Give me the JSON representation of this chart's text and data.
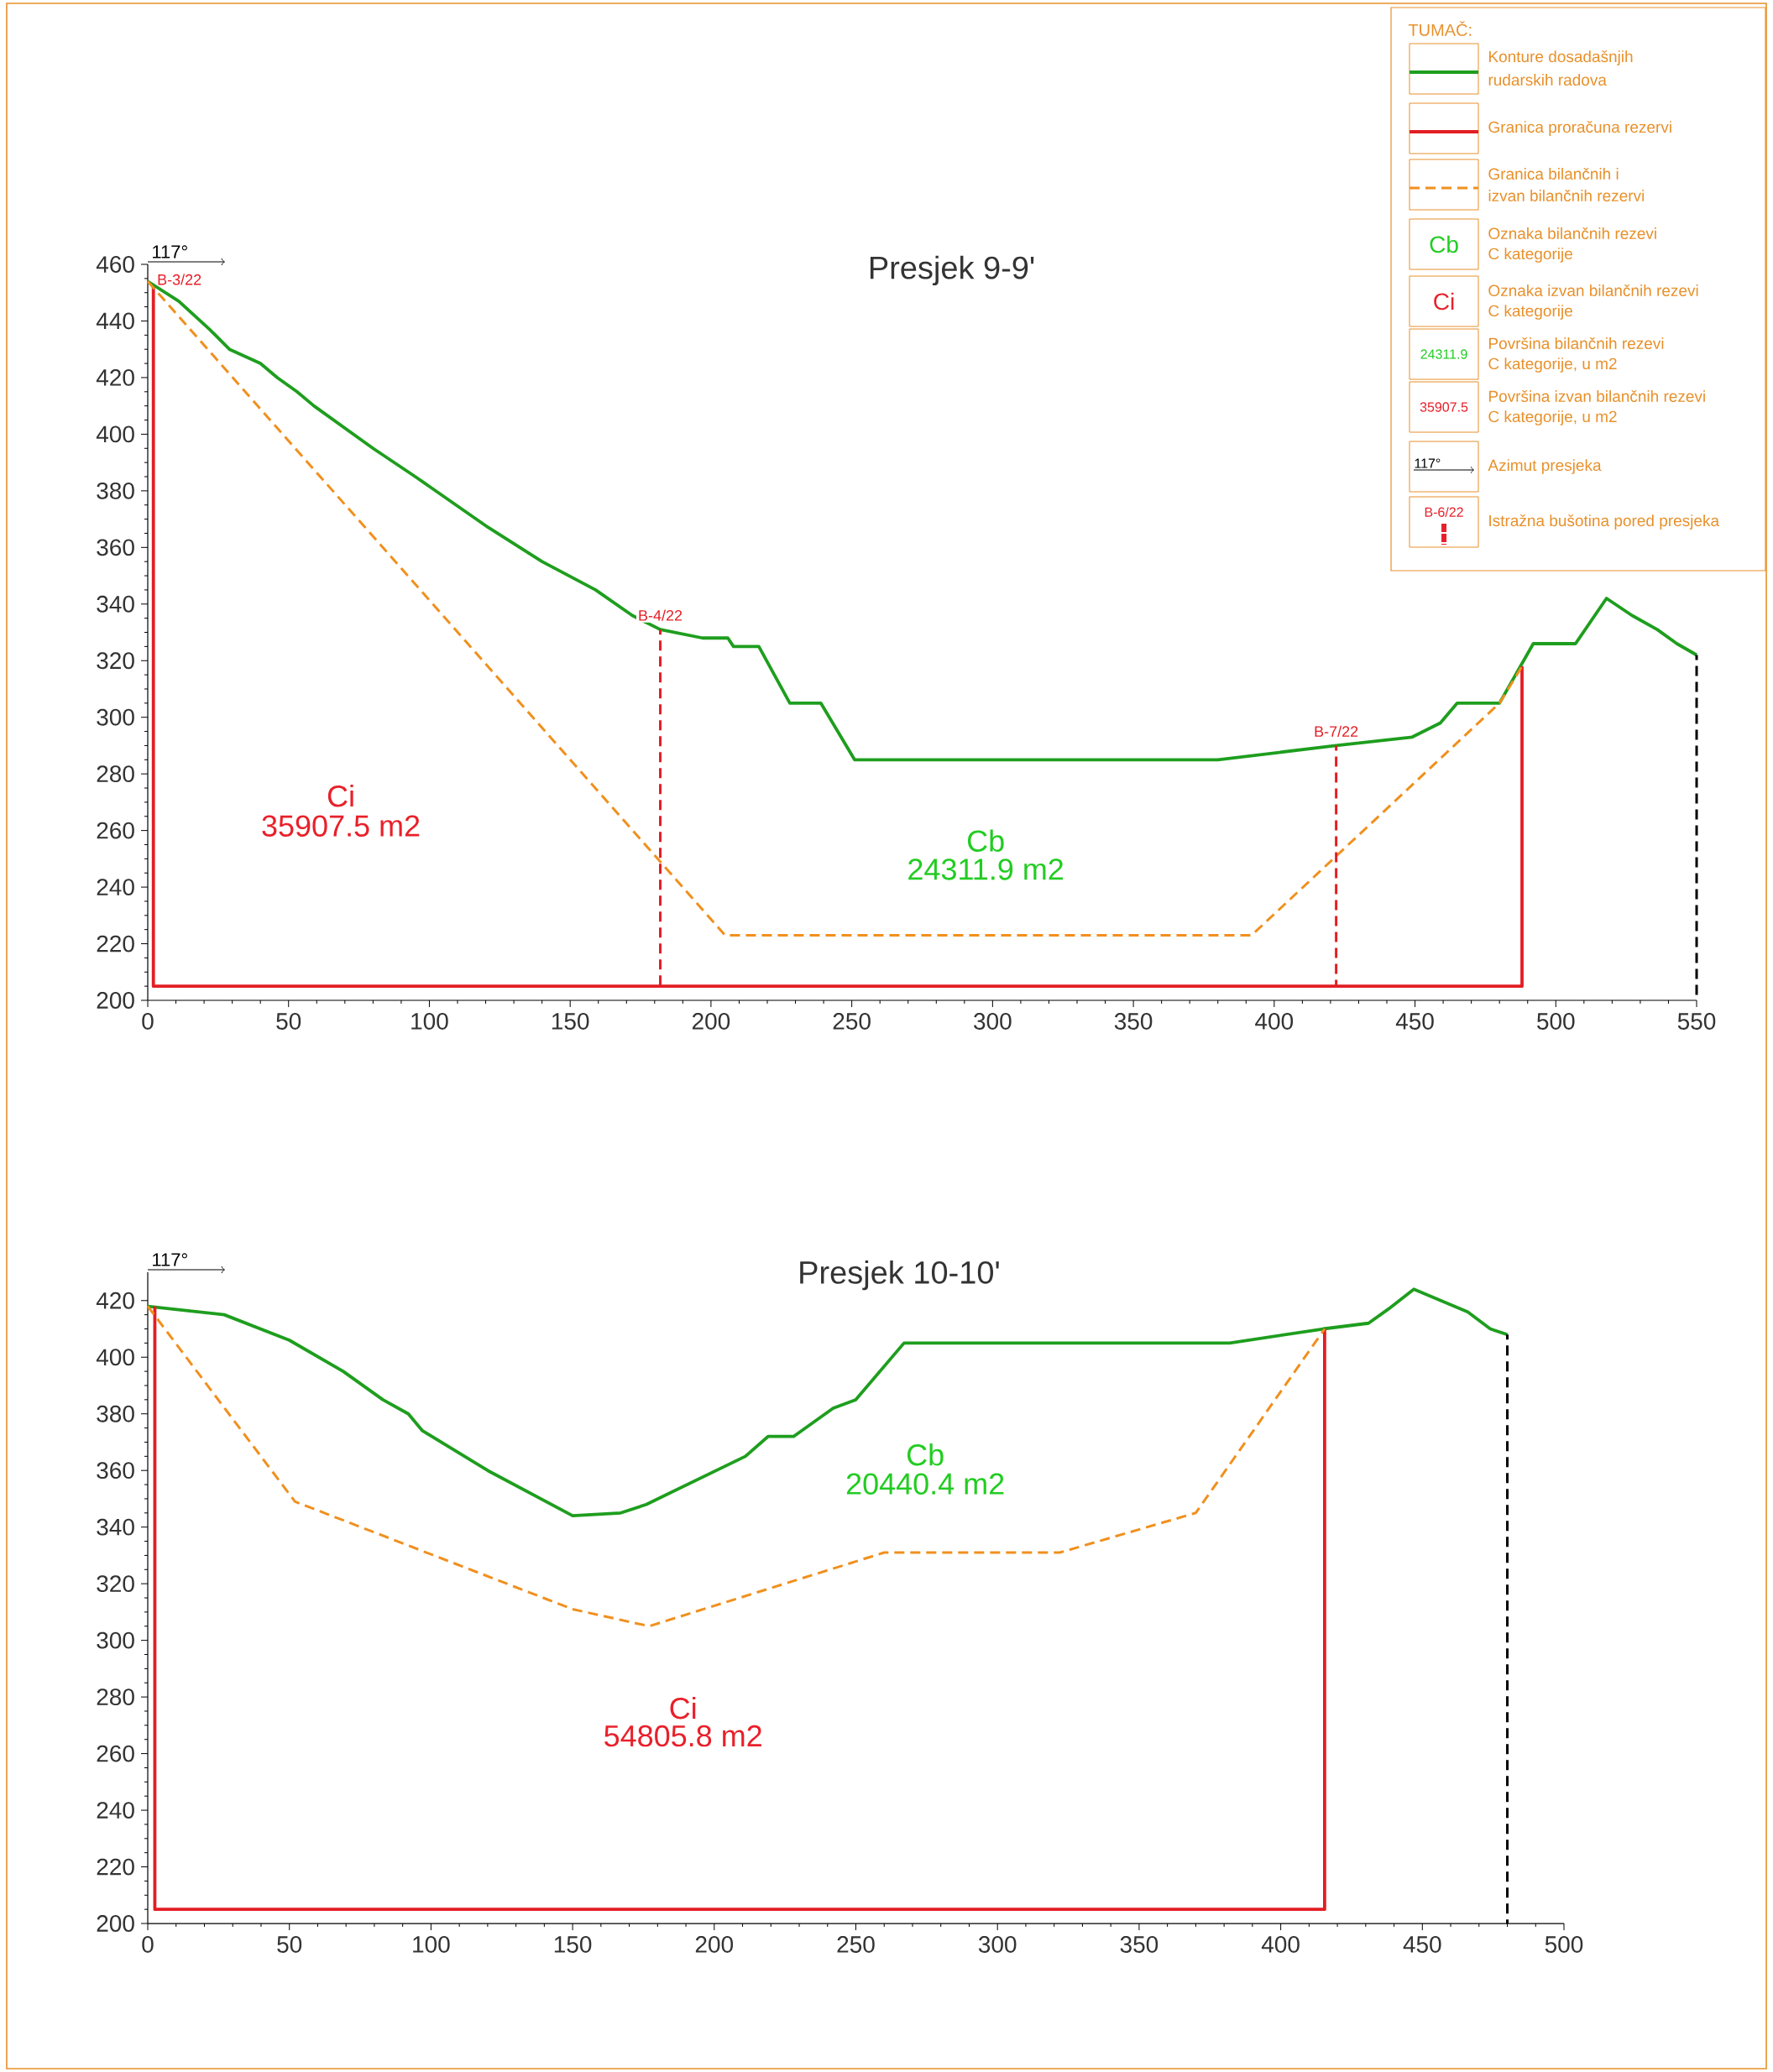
{
  "chart_data": [
    {
      "type": "line",
      "title": "Presjek 9-9'",
      "xlim": [
        0,
        550
      ],
      "ylim": [
        200,
        460
      ],
      "xticks": [
        0,
        50,
        100,
        150,
        200,
        250,
        300,
        350,
        400,
        450,
        500,
        550
      ],
      "yticks": [
        200,
        220,
        240,
        260,
        280,
        300,
        320,
        340,
        360,
        380,
        400,
        420,
        440,
        460
      ],
      "series": [
        {
          "color": "#1e9e1e",
          "line_style": "solid",
          "x": [
            0,
            11,
            22,
            29,
            40,
            46,
            53,
            59,
            80,
            95,
            121,
            140,
            159,
            172,
            182,
            197,
            206,
            208,
            217,
            228,
            239,
            251,
            300,
            380,
            422,
            449,
            459,
            465,
            480,
            492,
            507,
            518,
            527,
            536,
            543,
            550
          ],
          "values": [
            454,
            447,
            437,
            430,
            425,
            420,
            415,
            410,
            395,
            385,
            367,
            355,
            345,
            336,
            331,
            328,
            328,
            325,
            325,
            305,
            305,
            285,
            285,
            285,
            290,
            293,
            298,
            305,
            305,
            326,
            326,
            342,
            336,
            331,
            326,
            322
          ]
        },
        {
          "color": "#e31e24",
          "line_style": "solid",
          "x": [
            2,
            2,
            488,
            488
          ],
          "values": [
            452,
            205,
            205,
            318
          ]
        },
        {
          "color": "#f0901e",
          "line_style": "dashed",
          "x": [
            0,
            182,
            205,
            392,
            480,
            488
          ],
          "values": [
            454,
            249,
            223,
            223,
            305,
            318
          ]
        },
        {
          "name": "B-4/22",
          "color": "#e31e24",
          "line_style": "dashed",
          "x": [
            182,
            182
          ],
          "values": [
            205,
            331
          ]
        },
        {
          "name": "B-7/22",
          "color": "#e31e24",
          "line_style": "dashed",
          "x": [
            422,
            422
          ],
          "values": [
            205,
            290
          ]
        },
        {
          "color": "#000000",
          "line_style": "dashed",
          "x": [
            550,
            550
          ],
          "values": [
            200,
            322
          ]
        }
      ],
      "annotations": [
        "117°",
        "Ci",
        "35907.5 m2",
        "Cb",
        "24311.9 m2",
        {
          "text": "B-3/22",
          "x": 2,
          "y": 452
        }
      ]
    },
    {
      "type": "line",
      "title": "Presjek 10-10'",
      "xlim": [
        0,
        500
      ],
      "ylim": [
        200,
        430
      ],
      "xticks": [
        0,
        50,
        100,
        150,
        200,
        250,
        300,
        350,
        400,
        450,
        500
      ],
      "yticks": [
        200,
        220,
        240,
        260,
        280,
        300,
        320,
        340,
        360,
        380,
        400,
        420
      ],
      "series": [
        {
          "color": "#1e9e1e",
          "line_style": "solid",
          "x": [
            0,
            27,
            50,
            69,
            83,
            92,
            97,
            120,
            150,
            167,
            176,
            211,
            219,
            228,
            242,
            250,
            267,
            382,
            415,
            431,
            438,
            447,
            466,
            474,
            480
          ],
          "values": [
            418,
            415,
            406,
            395,
            385,
            380,
            374,
            360,
            344,
            345,
            348,
            365,
            372,
            372,
            382,
            385,
            405,
            405,
            410,
            412,
            417,
            424,
            416,
            410,
            408
          ]
        },
        {
          "color": "#e31e24",
          "line_style": "solid",
          "x": [
            2.5,
            2.5,
            415.5,
            415.5
          ],
          "values": [
            418,
            205,
            205,
            410
          ]
        },
        {
          "color": "#f0901e",
          "line_style": "dashed",
          "x": [
            0,
            52,
            150,
            177,
            260,
            322,
            370,
            415.5
          ],
          "values": [
            418,
            349,
            311,
            305,
            331,
            331,
            345,
            410
          ]
        },
        {
          "color": "#000000",
          "line_style": "dashed",
          "x": [
            480,
            480
          ],
          "values": [
            200,
            408
          ]
        }
      ],
      "annotations": [
        "117°",
        "Cb",
        "20440.4 m2",
        "Ci",
        "54805.8 m2"
      ]
    },
    {
      "type": "other",
      "title": "TUMAČ:",
      "annotations": [
        "Konture dosadašnjih",
        "rudarskih radova",
        "Granica proračuna rezervi",
        "Granica bilančnih i",
        "izvan bilančnih rezervi",
        "Cb",
        "Oznaka bilančnih rezevi",
        "C kategorije",
        "Ci",
        "Oznaka izvan bilančnih rezevi",
        "C kategorije",
        "24311.9",
        "Površina bilančnih rezevi",
        "C kategorije, u m2",
        "35907.5",
        "Površina izvan bilančnih rezevi",
        "C kategorije, u m2",
        "117°",
        "Azimut presjeka",
        "B-6/22",
        "Istražna bušotina pored presjeka"
      ]
    }
  ]
}
